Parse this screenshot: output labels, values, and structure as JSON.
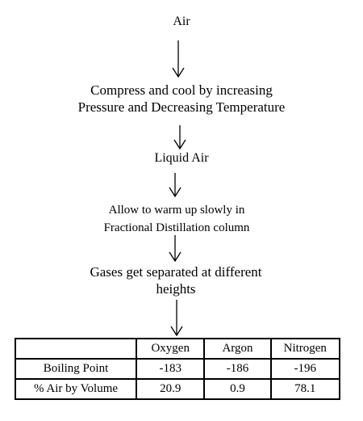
{
  "flow": {
    "step1": "Air",
    "step2_line1": "Compress and cool by increasing",
    "step2_line2": "Pressure and Decreasing Temperature",
    "step3": "Liquid Air",
    "step4_line1": "Allow to warm up slowly in",
    "step4_line2": "Fractional Distillation column",
    "step5_line1": "Gases get separated at different",
    "step5_line2": "heights"
  },
  "table": {
    "headers": [
      "",
      "Oxygen",
      "Argon",
      "Nitrogen"
    ],
    "rows": [
      [
        "Boiling Point",
        "-183",
        "-186",
        "-196"
      ],
      [
        "% Air by Volume",
        "20.9",
        "0.9",
        "78.1"
      ]
    ]
  }
}
